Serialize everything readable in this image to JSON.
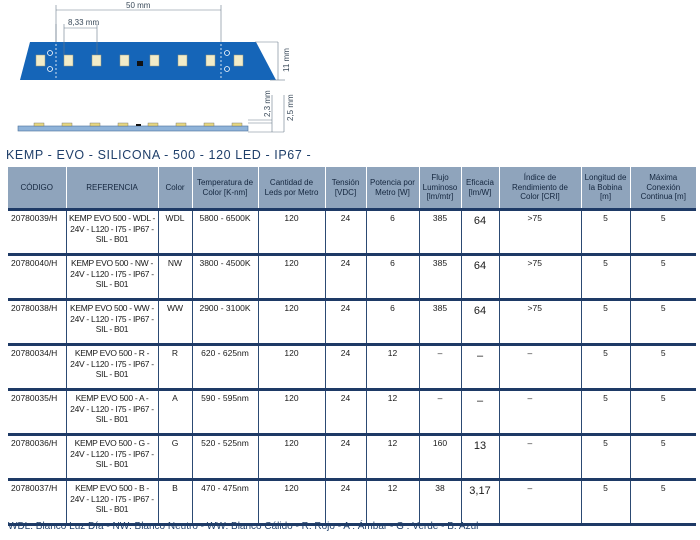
{
  "drawing": {
    "length_label": "50 mm",
    "pitch_label": "8,33 mm",
    "width_label": "11 mm",
    "height1_label": "2,3 mm",
    "height2_label": "2,5 mm"
  },
  "title": "KEMP - EVO - SILICONA - 500 - 120 LED - IP67 -",
  "table": {
    "headers": [
      "CÓDIGO",
      "REFERENCIA",
      "Color",
      "Temperatura de Color [K-nm]",
      "Cantidad de Leds por Metro",
      "Tensión [VDC]",
      "Potencia por Metro [W]",
      "Flujo Luminoso [lm/mtr]",
      "Eficacia [lm/W]",
      "Índice de Rendimiento de Color [CRI]",
      "Longitud de la Bobina [m]",
      "Máxima Conexión Continua [m]"
    ],
    "rows": [
      {
        "code": "20780039/H",
        "ref": "KEMP EVO 500 - WDL - 24V - L120 - I75 - IP67 - SIL - B01",
        "color": "WDL",
        "temp": "5800 - 6500K",
        "leds": "120",
        "volt": "24",
        "power": "6",
        "flux": "385",
        "eff": "64",
        "cri": ">75",
        "reel": "5",
        "max": "5"
      },
      {
        "code": "20780040/H",
        "ref": "KEMP EVO 500 - NW - 24V - L120 - I75 - IP67 - SIL - B01",
        "color": "NW",
        "temp": "3800 - 4500K",
        "leds": "120",
        "volt": "24",
        "power": "6",
        "flux": "385",
        "eff": "64",
        "cri": ">75",
        "reel": "5",
        "max": "5"
      },
      {
        "code": "20780038/H",
        "ref": "KEMP EVO 500 - WW - 24V - L120 - I75 - IP67 - SIL - B01",
        "color": "WW",
        "temp": "2900 - 3100K",
        "leds": "120",
        "volt": "24",
        "power": "6",
        "flux": "385",
        "eff": "64",
        "cri": ">75",
        "reel": "5",
        "max": "5"
      },
      {
        "code": "20780034/H",
        "ref": "KEMP EVO 500 - R - 24V - L120 - I75 - IP67 - SIL - B01",
        "color": "R",
        "temp": "620 - 625nm",
        "leds": "120",
        "volt": "24",
        "power": "12",
        "flux": "–",
        "eff": "–",
        "cri": "–",
        "reel": "5",
        "max": "5"
      },
      {
        "code": "20780035/H",
        "ref": "KEMP EVO 500 - A - 24V - L120 - I75 - IP67 - SIL - B01",
        "color": "A",
        "temp": "590 - 595nm",
        "leds": "120",
        "volt": "24",
        "power": "12",
        "flux": "–",
        "eff": "–",
        "cri": "–",
        "reel": "5",
        "max": "5"
      },
      {
        "code": "20780036/H",
        "ref": "KEMP EVO 500 - G - 24V - L120 - I75 - IP67 - SIL - B01",
        "color": "G",
        "temp": "520 - 525nm",
        "leds": "120",
        "volt": "24",
        "power": "12",
        "flux": "160",
        "eff": "13",
        "cri": "–",
        "reel": "5",
        "max": "5"
      },
      {
        "code": "20780037/H",
        "ref": "KEMP EVO 500 - B - 24V - L120 - I75 - IP67 - SIL - B01",
        "color": "B",
        "temp": "470 - 475nm",
        "leds": "120",
        "volt": "24",
        "power": "12",
        "flux": "38",
        "eff": "3,17",
        "cri": "–",
        "reel": "5",
        "max": "5"
      }
    ]
  },
  "legend": "WDL: Blanco Luz Día  -  NW: Blanco Neutro  -  WW: Blanco Cálido  -  R: Rojo  -  A : Ámbar  -  G : Verde  -  B: Azul",
  "colors": {
    "strip": "#1565b8",
    "header_bg": "#8fa4bc",
    "row_border": "#1e3a66",
    "led": "#f2ecc8"
  }
}
